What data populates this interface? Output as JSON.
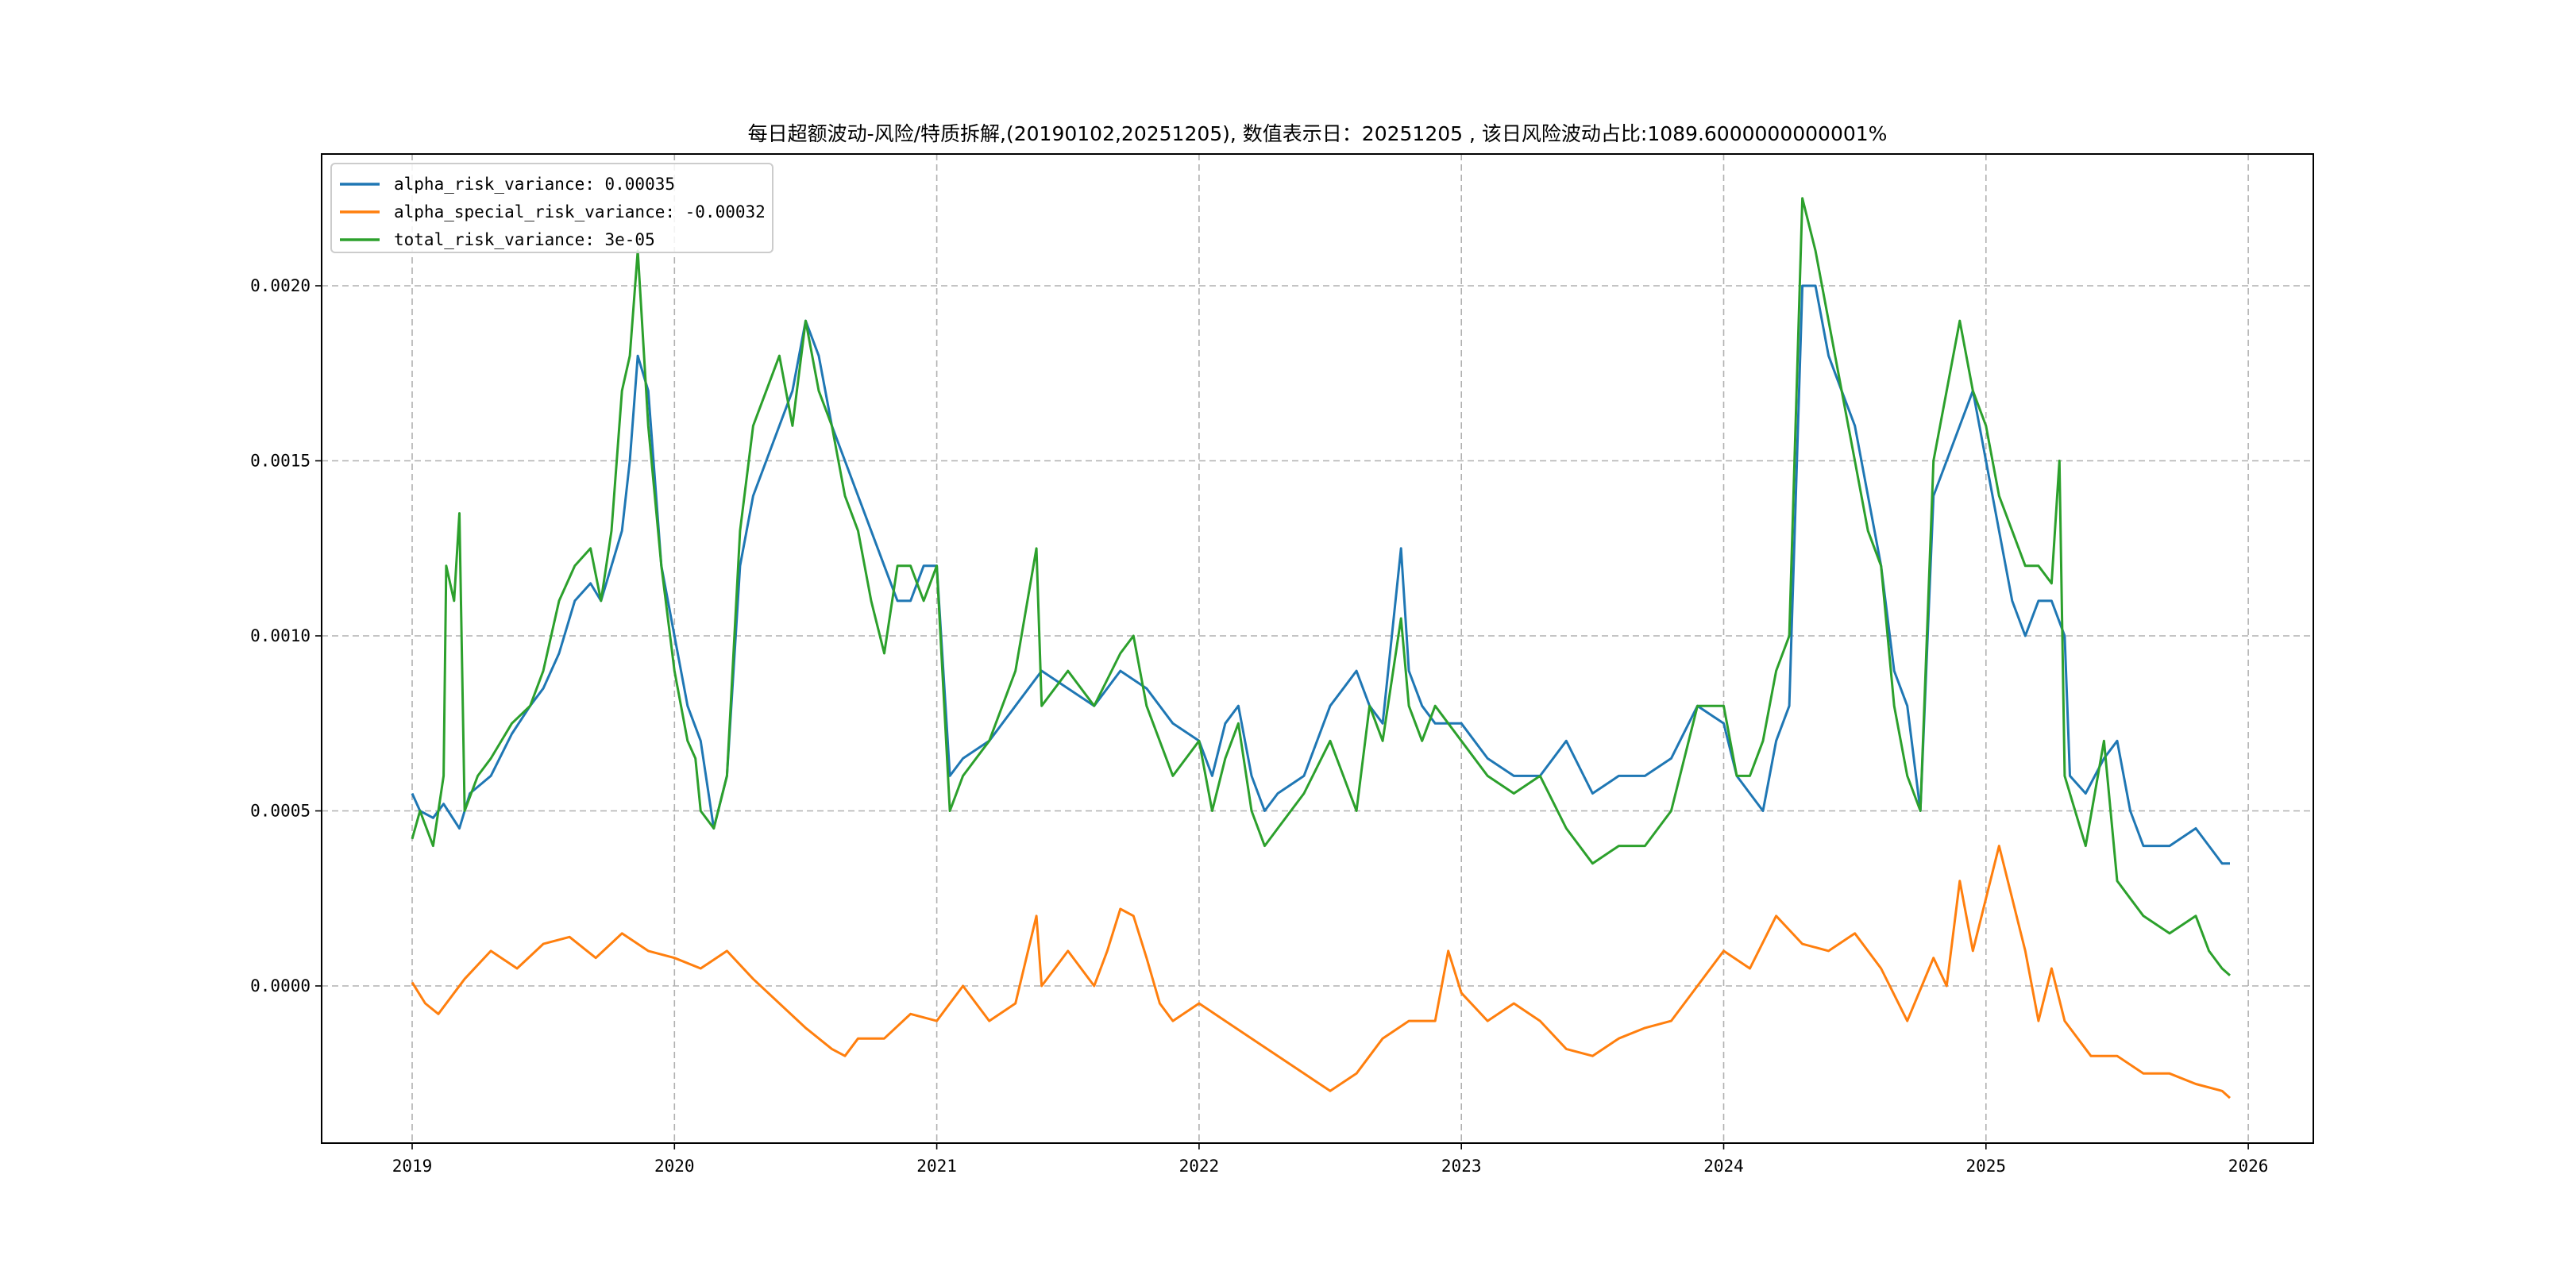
{
  "chart_data": {
    "type": "line",
    "title": "每日超额波动-风险/特质拆解,(20190102,20251205), 数值表示日：20251205 , 该日风险波动占比:1089.6000000000001%",
    "xlabel": "",
    "ylabel": "",
    "xlim": [
      2018.65,
      2026.3
    ],
    "ylim": [
      -0.00045,
      0.0024
    ],
    "x_ticks": [
      2019,
      2020,
      2021,
      2022,
      2023,
      2024,
      2025,
      2026
    ],
    "x_tick_labels": [
      "2019",
      "2020",
      "2021",
      "2022",
      "2023",
      "2024",
      "2025",
      "2026"
    ],
    "y_ticks": [
      0,
      0.0005,
      0.001,
      0.0015,
      0.002
    ],
    "y_tick_labels": [
      "0.0000",
      "0.0005",
      "0.0010",
      "0.0015",
      "0.0020"
    ],
    "grid": true,
    "legend_position": "top-left",
    "series": [
      {
        "name": "alpha_risk_variance: 0.00035",
        "color": "#1f77b4",
        "x": [
          2019.0,
          2019.03,
          2019.08,
          2019.12,
          2019.18,
          2019.22,
          2019.3,
          2019.38,
          2019.45,
          2019.5,
          2019.56,
          2019.62,
          2019.68,
          2019.72,
          2019.76,
          2019.8,
          2019.83,
          2019.86,
          2019.9,
          2019.95,
          2020.0,
          2020.05,
          2020.1,
          2020.15,
          2020.2,
          2020.25,
          2020.3,
          2020.35,
          2020.4,
          2020.45,
          2020.5,
          2020.55,
          2020.6,
          2020.65,
          2020.7,
          2020.75,
          2020.8,
          2020.85,
          2020.9,
          2020.95,
          2021.0,
          2021.05,
          2021.1,
          2021.2,
          2021.3,
          2021.4,
          2021.5,
          2021.6,
          2021.7,
          2021.8,
          2021.9,
          2022.0,
          2022.05,
          2022.1,
          2022.15,
          2022.2,
          2022.25,
          2022.3,
          2022.4,
          2022.5,
          2022.55,
          2022.6,
          2022.65,
          2022.7,
          2022.77,
          2022.8,
          2022.85,
          2022.9,
          2023.0,
          2023.1,
          2023.2,
          2023.3,
          2023.4,
          2023.5,
          2023.6,
          2023.7,
          2023.8,
          2023.9,
          2024.0,
          2024.05,
          2024.1,
          2024.15,
          2024.2,
          2024.25,
          2024.3,
          2024.35,
          2024.4,
          2024.45,
          2024.5,
          2024.55,
          2024.6,
          2024.65,
          2024.7,
          2024.75,
          2024.8,
          2024.85,
          2024.9,
          2024.95,
          2025.0,
          2025.05,
          2025.1,
          2025.15,
          2025.2,
          2025.25,
          2025.3,
          2025.32,
          2025.38,
          2025.45,
          2025.5,
          2025.55,
          2025.6,
          2025.7,
          2025.8,
          2025.85,
          2025.9,
          2025.93
        ],
        "y": [
          0.00055,
          0.0005,
          0.00048,
          0.00052,
          0.00045,
          0.00055,
          0.0006,
          0.00072,
          0.0008,
          0.00085,
          0.00095,
          0.0011,
          0.00115,
          0.0011,
          0.0012,
          0.0013,
          0.0015,
          0.0018,
          0.0017,
          0.0012,
          0.001,
          0.0008,
          0.0007,
          0.00045,
          0.0006,
          0.0012,
          0.0014,
          0.0015,
          0.0016,
          0.0017,
          0.0019,
          0.0018,
          0.0016,
          0.0015,
          0.0014,
          0.0013,
          0.0012,
          0.0011,
          0.0011,
          0.0012,
          0.0012,
          0.0006,
          0.00065,
          0.0007,
          0.0008,
          0.0009,
          0.00085,
          0.0008,
          0.0009,
          0.00085,
          0.00075,
          0.0007,
          0.0006,
          0.00075,
          0.0008,
          0.0006,
          0.0005,
          0.00055,
          0.0006,
          0.0008,
          0.00085,
          0.0009,
          0.0008,
          0.00075,
          0.00125,
          0.0009,
          0.0008,
          0.00075,
          0.00075,
          0.00065,
          0.0006,
          0.0006,
          0.0007,
          0.00055,
          0.0006,
          0.0006,
          0.00065,
          0.0008,
          0.00075,
          0.0006,
          0.00055,
          0.0005,
          0.0007,
          0.0008,
          0.002,
          0.002,
          0.0018,
          0.0017,
          0.0016,
          0.0014,
          0.0012,
          0.0009,
          0.0008,
          0.0005,
          0.0014,
          0.0015,
          0.0016,
          0.0017,
          0.0015,
          0.0013,
          0.0011,
          0.001,
          0.0011,
          0.0011,
          0.001,
          0.0006,
          0.00055,
          0.00065,
          0.0007,
          0.0005,
          0.0004,
          0.0004,
          0.00045,
          0.0004,
          0.00035,
          0.00035
        ]
      },
      {
        "name": "alpha_special_risk_variance: -0.00032",
        "color": "#ff7f0e",
        "x": [
          2019.0,
          2019.05,
          2019.1,
          2019.2,
          2019.3,
          2019.4,
          2019.5,
          2019.6,
          2019.7,
          2019.8,
          2019.9,
          2020.0,
          2020.1,
          2020.2,
          2020.3,
          2020.4,
          2020.5,
          2020.6,
          2020.65,
          2020.7,
          2020.8,
          2020.9,
          2021.0,
          2021.05,
          2021.1,
          2021.2,
          2021.3,
          2021.38,
          2021.4,
          2021.5,
          2021.6,
          2021.65,
          2021.7,
          2021.75,
          2021.8,
          2021.85,
          2021.9,
          2022.0,
          2022.1,
          2022.2,
          2022.3,
          2022.4,
          2022.5,
          2022.6,
          2022.7,
          2022.8,
          2022.9,
          2022.95,
          2023.0,
          2023.1,
          2023.2,
          2023.3,
          2023.4,
          2023.5,
          2023.6,
          2023.7,
          2023.8,
          2023.9,
          2024.0,
          2024.1,
          2024.2,
          2024.3,
          2024.4,
          2024.5,
          2024.6,
          2024.7,
          2024.8,
          2024.85,
          2024.9,
          2024.95,
          2025.0,
          2025.05,
          2025.1,
          2025.15,
          2025.2,
          2025.25,
          2025.3,
          2025.4,
          2025.5,
          2025.6,
          2025.7,
          2025.8,
          2025.9,
          2025.93
        ],
        "y": [
          1e-05,
          -5e-05,
          -8e-05,
          2e-05,
          0.0001,
          5e-05,
          0.00012,
          0.00014,
          8e-05,
          0.00015,
          0.0001,
          8e-05,
          5e-05,
          0.0001,
          2e-05,
          -5e-05,
          -0.00012,
          -0.00018,
          -0.0002,
          -0.00015,
          -0.00015,
          -8e-05,
          -0.0001,
          -5e-05,
          0.0,
          -0.0001,
          -5e-05,
          0.0002,
          0.0,
          0.0001,
          0.0,
          0.0001,
          0.00022,
          0.0002,
          8e-05,
          -5e-05,
          -0.0001,
          -5e-05,
          -0.0001,
          -0.00015,
          -0.0002,
          -0.00025,
          -0.0003,
          -0.00025,
          -0.00015,
          -0.0001,
          -0.0001,
          0.0001,
          -2e-05,
          -0.0001,
          -5e-05,
          -0.0001,
          -0.00018,
          -0.0002,
          -0.00015,
          -0.00012,
          -0.0001,
          0.0,
          0.0001,
          5e-05,
          0.0002,
          0.00012,
          0.0001,
          0.00015,
          5e-05,
          -0.0001,
          8e-05,
          0.0,
          0.0003,
          0.0001,
          0.00025,
          0.0004,
          0.00025,
          0.0001,
          -0.0001,
          5e-05,
          -0.0001,
          -0.0002,
          -0.0002,
          -0.00025,
          -0.00025,
          -0.00028,
          -0.0003,
          -0.00032
        ]
      },
      {
        "name": "total_risk_variance: 3e-05",
        "color": "#2ca02c",
        "x": [
          2019.0,
          2019.03,
          2019.08,
          2019.12,
          2019.13,
          2019.16,
          2019.18,
          2019.2,
          2019.25,
          2019.3,
          2019.38,
          2019.45,
          2019.5,
          2019.56,
          2019.62,
          2019.68,
          2019.72,
          2019.76,
          2019.8,
          2019.83,
          2019.86,
          2019.9,
          2019.95,
          2020.0,
          2020.05,
          2020.08,
          2020.1,
          2020.15,
          2020.2,
          2020.25,
          2020.3,
          2020.35,
          2020.4,
          2020.45,
          2020.5,
          2020.55,
          2020.6,
          2020.65,
          2020.7,
          2020.75,
          2020.8,
          2020.85,
          2020.9,
          2020.95,
          2021.0,
          2021.05,
          2021.1,
          2021.2,
          2021.3,
          2021.38,
          2021.4,
          2021.5,
          2021.6,
          2021.7,
          2021.75,
          2021.8,
          2021.9,
          2022.0,
          2022.05,
          2022.1,
          2022.15,
          2022.2,
          2022.25,
          2022.3,
          2022.4,
          2022.5,
          2022.55,
          2022.6,
          2022.65,
          2022.7,
          2022.77,
          2022.8,
          2022.85,
          2022.9,
          2023.0,
          2023.1,
          2023.2,
          2023.3,
          2023.4,
          2023.5,
          2023.6,
          2023.7,
          2023.8,
          2023.9,
          2024.0,
          2024.05,
          2024.1,
          2024.15,
          2024.2,
          2024.25,
          2024.3,
          2024.35,
          2024.4,
          2024.45,
          2024.5,
          2024.55,
          2024.6,
          2024.65,
          2024.7,
          2024.75,
          2024.8,
          2024.85,
          2024.9,
          2024.95,
          2025.0,
          2025.05,
          2025.1,
          2025.15,
          2025.2,
          2025.25,
          2025.28,
          2025.3,
          2025.32,
          2025.38,
          2025.45,
          2025.5,
          2025.55,
          2025.6,
          2025.7,
          2025.8,
          2025.85,
          2025.9,
          2025.93
        ],
        "y": [
          0.00042,
          0.0005,
          0.0004,
          0.0006,
          0.0012,
          0.0011,
          0.00135,
          0.0005,
          0.0006,
          0.00065,
          0.00075,
          0.0008,
          0.0009,
          0.0011,
          0.0012,
          0.00125,
          0.0011,
          0.0013,
          0.0017,
          0.0018,
          0.0021,
          0.0016,
          0.0012,
          0.0009,
          0.0007,
          0.00065,
          0.0005,
          0.00045,
          0.0006,
          0.0013,
          0.0016,
          0.0017,
          0.0018,
          0.0016,
          0.0019,
          0.0017,
          0.0016,
          0.0014,
          0.0013,
          0.0011,
          0.00095,
          0.0012,
          0.0012,
          0.0011,
          0.0012,
          0.0005,
          0.0006,
          0.0007,
          0.0009,
          0.00125,
          0.0008,
          0.0009,
          0.0008,
          0.00095,
          0.001,
          0.0008,
          0.0006,
          0.0007,
          0.0005,
          0.00065,
          0.00075,
          0.0005,
          0.0004,
          0.00045,
          0.00055,
          0.0007,
          0.0006,
          0.0005,
          0.0008,
          0.0007,
          0.00105,
          0.0008,
          0.0007,
          0.0008,
          0.0007,
          0.0006,
          0.00055,
          0.0006,
          0.00045,
          0.00035,
          0.0004,
          0.0004,
          0.0005,
          0.0008,
          0.0008,
          0.0006,
          0.0006,
          0.0007,
          0.0009,
          0.001,
          0.00225,
          0.0021,
          0.0019,
          0.0017,
          0.0015,
          0.0013,
          0.0012,
          0.0008,
          0.0006,
          0.0005,
          0.0015,
          0.0017,
          0.0019,
          0.0017,
          0.0016,
          0.0014,
          0.0013,
          0.0012,
          0.0012,
          0.00115,
          0.0015,
          0.0006,
          0.00055,
          0.0004,
          0.0007,
          0.0003,
          0.00025,
          0.0002,
          0.00015,
          0.0002,
          0.0001,
          5e-05,
          3e-05
        ]
      }
    ]
  }
}
